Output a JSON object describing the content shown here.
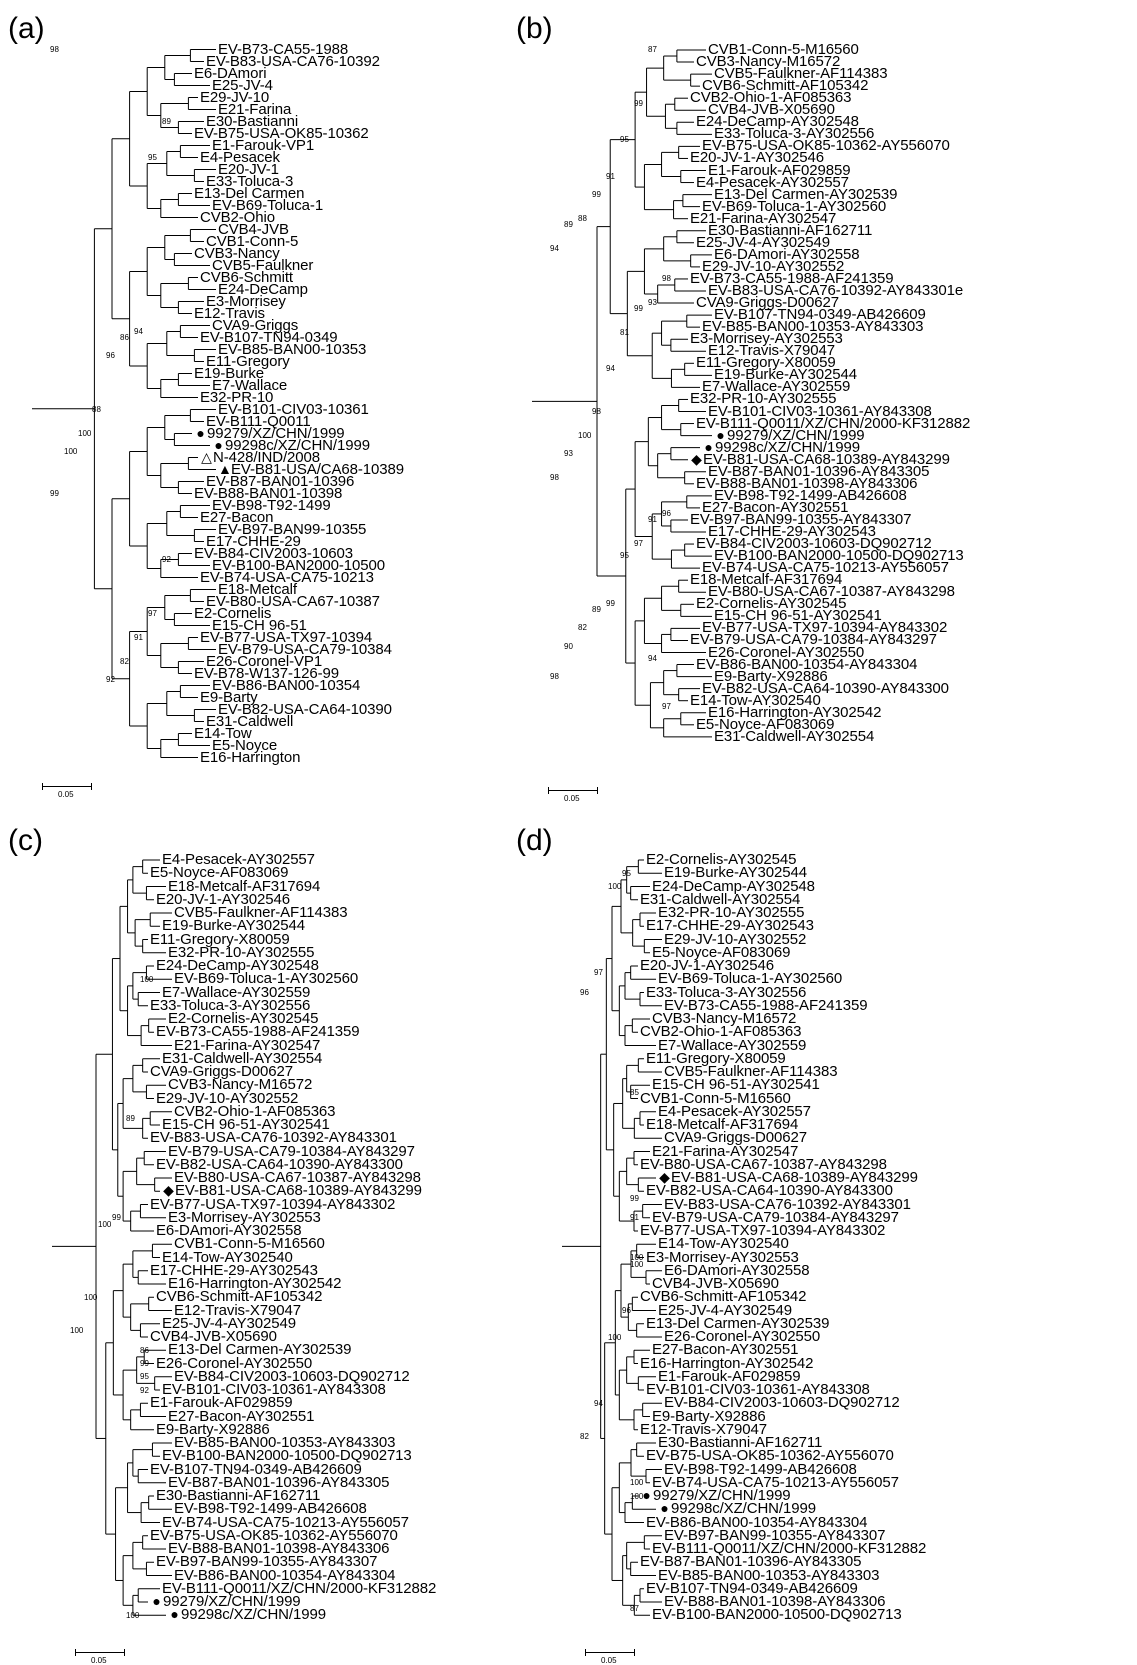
{
  "panels": [
    {
      "id": "a",
      "label": "(a)",
      "scale": "0.05",
      "leaves": [
        "EV-B73-CA55-1988",
        "EV-B83-USA-CA76-10392",
        "E6-DAmori",
        "E25-JV-4",
        "E29-JV-10",
        "E21-Farina",
        "E30-Bastianni",
        "EV-B75-USA-OK85-10362",
        "E1-Farouk-VP1",
        "E4-Pesacek",
        "E20-JV-1",
        "E33-Toluca-3",
        "E13-Del Carmen",
        "EV-B69-Toluca-1",
        "CVB2-Ohio",
        "CVB4-JVB",
        "CVB1-Conn-5",
        "CVB3-Nancy",
        "CVB5-Faulkner",
        "CVB6-Schmitt",
        "E24-DeCamp",
        "E3-Morrisey",
        "E12-Travis",
        "CVA9-Griggs",
        "EV-B107-TN94-0349",
        "EV-B85-BAN00-10353",
        "E11-Gregory",
        "E19-Burke",
        "E7-Wallace",
        "E32-PR-10",
        "EV-B101-CIV03-10361",
        "EV-B111-Q0011",
        "99279/XZ/CHN/1999",
        "99298c/XZ/CHN/1999",
        "N-428/IND/2008",
        "EV-B81-USA/CA68-10389",
        "EV-B87-BAN01-10396",
        "EV-B88-BAN01-10398",
        "EV-B98-T92-1499",
        "E27-Bacon",
        "EV-B97-BAN99-10355",
        "E17-CHHE-29",
        "EV-B84-CIV2003-10603",
        "EV-B100-BAN2000-10500",
        "EV-B74-USA-CA75-10213",
        "E18-Metcalf",
        "EV-B80-USA-CA67-10387",
        "E2-Cornelis",
        "E15-CH 96-51",
        "EV-B77-USA-TX97-10394",
        "EV-B79-USA-CA79-10384",
        "E26-Coronel-VP1",
        "EV-B78-W137-126-99",
        "EV-B86-BAN00-10354",
        "E9-Barty",
        "EV-B82-USA-CA64-10390",
        "E31-Caldwell",
        "E14-Tow",
        "E5-Noyce",
        "E16-Harrington"
      ],
      "markers": {
        "32": "●",
        "33": "●",
        "34": "△",
        "35": "▲"
      },
      "bootstrap": [
        {
          "text": "98",
          "row": 0.5
        },
        {
          "text": "89",
          "row": 6.5
        },
        {
          "text": "95",
          "row": 9.5
        },
        {
          "text": "94",
          "row": 24
        },
        {
          "text": "86",
          "row": 24.5
        },
        {
          "text": "96",
          "row": 26
        },
        {
          "text": "88",
          "row": 30.5
        },
        {
          "text": "100",
          "row": 32.5
        },
        {
          "text": "100",
          "row": 34
        },
        {
          "text": "99",
          "row": 37.5
        },
        {
          "text": "92",
          "row": 43
        },
        {
          "text": "97",
          "row": 47.5
        },
        {
          "text": "91",
          "row": 49.5
        },
        {
          "text": "82",
          "row": 51.5
        },
        {
          "text": "92",
          "row": 53
        }
      ]
    },
    {
      "id": "b",
      "label": "(b)",
      "scale": "0.05",
      "leaves": [
        "CVB1-Conn-5-M16560",
        "CVB3-Nancy-M16572",
        "CVB5-Faulkner-AF114383",
        "CVB6-Schmitt-AF105342",
        "CVB2-Ohio-1-AF085363",
        "CVB4-JVB-X05690",
        "E24-DeCamp-AY302548",
        "E33-Toluca-3-AY302556",
        "EV-B75-USA-OK85-10362-AY556070",
        "E20-JV-1-AY302546",
        "E1-Farouk-AF029859",
        "E4-Pesacek-AY302557",
        "E13-Del Carmen-AY302539",
        "EV-B69-Toluca-1-AY302560",
        "E21-Farina-AY302547",
        "E30-Bastianni-AF162711",
        "E25-JV-4-AY302549",
        "E6-DAmori-AY302558",
        "E29-JV-10-AY302552",
        "EV-B73-CA55-1988-AF241359",
        "EV-B83-USA-CA76-10392-AY843301e",
        "CVA9-Griggs-D00627",
        "EV-B107-TN94-0349-AB426609",
        "EV-B85-BAN00-10353-AY843303",
        "E3-Morrisey-AY302553",
        "E12-Travis-X79047",
        "E11-Gregory-X80059",
        "E19-Burke-AY302544",
        "E7-Wallace-AY302559",
        "E32-PR-10-AY302555",
        "EV-B101-CIV03-10361-AY843308",
        "EV-B111-Q0011/XZ/CHN/2000-KF312882",
        "99279/XZ/CHN/1999",
        "99298c/XZ/CHN/1999",
        "EV-B81-USA-CA68-10389-AY843299",
        "EV-B87-BAN01-10396-AY843305",
        "EV-B88-BAN01-10398-AY843306",
        "EV-B98-T92-1499-AB426608",
        "E27-Bacon-AY302551",
        "EV-B97-BAN99-10355-AY843307",
        "E17-CHHE-29-AY302543",
        "EV-B84-CIV2003-10603-DQ902712",
        "EV-B100-BAN2000-10500-DQ902713",
        "EV-B74-USA-CA75-10213-AY556057",
        "E18-Metcalf-AF317694",
        "EV-B80-USA-CA67-10387-AY843298",
        "E2-Cornelis-AY302545",
        "E15-CH 96-51-AY302541",
        "EV-B77-USA-TX97-10394-AY843302",
        "EV-B79-USA-CA79-10384-AY843297",
        "E26-Coronel-AY302550",
        "EV-B86-BAN00-10354-AY843304",
        "E9-Barty-X92886",
        "EV-B82-USA-CA64-10390-AY843300",
        "E14-Tow-AY302540",
        "E16-Harrington-AY302542",
        "E5-Noyce-AF083069",
        "E31-Caldwell-AY302554"
      ],
      "markers": {
        "32": "●",
        "33": "●",
        "34": "◆"
      },
      "bootstrap": [
        {
          "text": "87",
          "row": 0.5
        },
        {
          "text": "99",
          "row": 5
        },
        {
          "text": "95",
          "row": 8
        },
        {
          "text": "91",
          "row": 11
        },
        {
          "text": "99",
          "row": 12.5
        },
        {
          "text": "88",
          "row": 14.5
        },
        {
          "text": "89",
          "row": 15
        },
        {
          "text": "94",
          "row": 17
        },
        {
          "text": "98",
          "row": 19.5
        },
        {
          "text": "93",
          "row": 21.5
        },
        {
          "text": "99",
          "row": 22
        },
        {
          "text": "81",
          "row": 24
        },
        {
          "text": "94",
          "row": 27
        },
        {
          "text": "98",
          "row": 30.5
        },
        {
          "text": "100",
          "row": 32.5
        },
        {
          "text": "93",
          "row": 34
        },
        {
          "text": "98",
          "row": 36
        },
        {
          "text": "96",
          "row": 39
        },
        {
          "text": "91",
          "row": 39.5
        },
        {
          "text": "97",
          "row": 41.5
        },
        {
          "text": "95",
          "row": 42.5
        },
        {
          "text": "99",
          "row": 46.5
        },
        {
          "text": "89",
          "row": 47
        },
        {
          "text": "82",
          "row": 48.5
        },
        {
          "text": "90",
          "row": 50
        },
        {
          "text": "98",
          "row": 52.5
        },
        {
          "text": "97",
          "row": 55
        },
        {
          "text": "94",
          "row": 51
        }
      ]
    },
    {
      "id": "c",
      "label": "(c)",
      "scale": "0.05",
      "leaves": [
        "E4-Pesacek-AY302557",
        "E5-Noyce-AF083069",
        "E18-Metcalf-AF317694",
        "E20-JV-1-AY302546",
        "CVB5-Faulkner-AF114383",
        "E19-Burke-AY302544",
        "E11-Gregory-X80059",
        "E32-PR-10-AY302555",
        "E24-DeCamp-AY302548",
        "EV-B69-Toluca-1-AY302560",
        "E7-Wallace-AY302559",
        "E33-Toluca-3-AY302556",
        "E2-Cornelis-AY302545",
        "EV-B73-CA55-1988-AF241359",
        "E21-Farina-AY302547",
        "E31-Caldwell-AY302554",
        "CVA9-Griggs-D00627",
        "CVB3-Nancy-M16572",
        "E29-JV-10-AY302552",
        "CVB2-Ohio-1-AF085363",
        "E15-CH 96-51-AY302541",
        "EV-B83-USA-CA76-10392-AY843301",
        "EV-B79-USA-CA79-10384-AY843297",
        "EV-B82-USA-CA64-10390-AY843300",
        "EV-B80-USA-CA67-10387-AY843298",
        "EV-B81-USA-CA68-10389-AY843299",
        "EV-B77-USA-TX97-10394-AY843302",
        "E3-Morrisey-AY302553",
        "E6-DAmori-AY302558",
        "CVB1-Conn-5-M16560",
        "E14-Tow-AY302540",
        "E17-CHHE-29-AY302543",
        "E16-Harrington-AY302542",
        "CVB6-Schmitt-AF105342",
        "E12-Travis-X79047",
        "E25-JV-4-AY302549",
        "CVB4-JVB-X05690",
        "E13-Del Carmen-AY302539",
        "E26-Coronel-AY302550",
        "EV-B84-CIV2003-10603-DQ902712",
        "EV-B101-CIV03-10361-AY843308",
        "E1-Farouk-AF029859",
        "E27-Bacon-AY302551",
        "E9-Barty-X92886",
        "EV-B85-BAN00-10353-AY843303",
        "EV-B100-BAN2000-10500-DQ902713",
        "EV-B107-TN94-0349-AB426609",
        "EV-B87-BAN01-10396-AY843305",
        "E30-Bastianni-AF162711",
        "EV-B98-T92-1499-AB426608",
        "EV-B74-USA-CA75-10213-AY556057",
        "EV-B75-USA-OK85-10362-AY556070",
        "EV-B88-BAN01-10398-AY843306",
        "EV-B97-BAN99-10355-AY843307",
        "EV-B86-BAN00-10354-AY843304",
        "EV-B111-Q0011/XZ/CHN/2000-KF312882",
        "99279/XZ/CHN/1999",
        "99298c/XZ/CHN/1999"
      ],
      "markers": {
        "25": "◆",
        "56": "●",
        "57": "●"
      },
      "bootstrap": [
        {
          "text": "100",
          "row": 9.5
        },
        {
          "text": "89",
          "row": 20
        },
        {
          "text": "99",
          "row": 27.5
        },
        {
          "text": "100",
          "row": 28
        },
        {
          "text": "100",
          "row": 33.5
        },
        {
          "text": "100",
          "row": 36
        },
        {
          "text": "86",
          "row": 37.5
        },
        {
          "text": "99",
          "row": 38.5
        },
        {
          "text": "95",
          "row": 39.5
        },
        {
          "text": "92",
          "row": 40.5
        },
        {
          "text": "100",
          "row": 57.5
        }
      ]
    },
    {
      "id": "d",
      "label": "(d)",
      "scale": "0.05",
      "leaves": [
        "E2-Cornelis-AY302545",
        "E19-Burke-AY302544",
        "E24-DeCamp-AY302548",
        "E31-Caldwell-AY302554",
        "E32-PR-10-AY302555",
        "E17-CHHE-29-AY302543",
        "E29-JV-10-AY302552",
        "E5-Noyce-AF083069",
        "E20-JV-1-AY302546",
        "EV-B69-Toluca-1-AY302560",
        "E33-Toluca-3-AY302556",
        "EV-B73-CA55-1988-AF241359",
        "CVB3-Nancy-M16572",
        "CVB2-Ohio-1-AF085363",
        "E7-Wallace-AY302559",
        "E11-Gregory-X80059",
        "CVB5-Faulkner-AF114383",
        "E15-CH 96-51-AY302541",
        "CVB1-Conn-5-M16560",
        "E4-Pesacek-AY302557",
        "E18-Metcalf-AF317694",
        "CVA9-Griggs-D00627",
        "E21-Farina-AY302547",
        "EV-B80-USA-CA67-10387-AY843298",
        "EV-B81-USA-CA68-10389-AY843299",
        "EV-B82-USA-CA64-10390-AY843300",
        "EV-B83-USA-CA76-10392-AY843301",
        "EV-B79-USA-CA79-10384-AY843297",
        "EV-B77-USA-TX97-10394-AY843302",
        "E14-Tow-AY302540",
        "E3-Morrisey-AY302553",
        "E6-DAmori-AY302558",
        "CVB4-JVB-X05690",
        "CVB6-Schmitt-AF105342",
        "E25-JV-4-AY302549",
        "E13-Del Carmen-AY302539",
        "E26-Coronel-AY302550",
        "E27-Bacon-AY302551",
        "E16-Harrington-AY302542",
        "E1-Farouk-AF029859",
        "EV-B101-CIV03-10361-AY843308",
        "EV-B84-CIV2003-10603-DQ902712",
        "E9-Barty-X92886",
        "E12-Travis-X79047",
        "E30-Bastianni-AF162711",
        "EV-B75-USA-OK85-10362-AY556070",
        "EV-B98-T92-1499-AB426608",
        "EV-B74-USA-CA75-10213-AY556057",
        "99279/XZ/CHN/1999",
        "99298c/XZ/CHN/1999",
        "EV-B86-BAN00-10354-AY843304",
        "EV-B97-BAN99-10355-AY843307",
        "EV-B111-Q0011/XZ/CHN/2000-KF312882",
        "EV-B87-BAN01-10396-AY843305",
        "EV-B85-BAN00-10353-AY843303",
        "EV-B107-TN94-0349-AB426609",
        "EV-B88-BAN01-10398-AY843306",
        "EV-B100-BAN2000-10500-DQ902713"
      ],
      "markers": {
        "24": "◆",
        "48": "●",
        "49": "●"
      },
      "bootstrap": [
        {
          "text": "95",
          "row": 1.5
        },
        {
          "text": "100",
          "row": 2.5
        },
        {
          "text": "97",
          "row": 9
        },
        {
          "text": "96",
          "row": 10.5
        },
        {
          "text": "85",
          "row": 18
        },
        {
          "text": "99",
          "row": 26
        },
        {
          "text": "91",
          "row": 27.5
        },
        {
          "text": "100",
          "row": 30.5
        },
        {
          "text": "100",
          "row": 31
        },
        {
          "text": "96",
          "row": 34.5
        },
        {
          "text": "100",
          "row": 36.5
        },
        {
          "text": "94",
          "row": 41.5
        },
        {
          "text": "82",
          "row": 44
        },
        {
          "text": "100",
          "row": 48.5
        },
        {
          "text": "100",
          "row": 47.5
        },
        {
          "text": "87",
          "row": 57
        }
      ]
    }
  ]
}
